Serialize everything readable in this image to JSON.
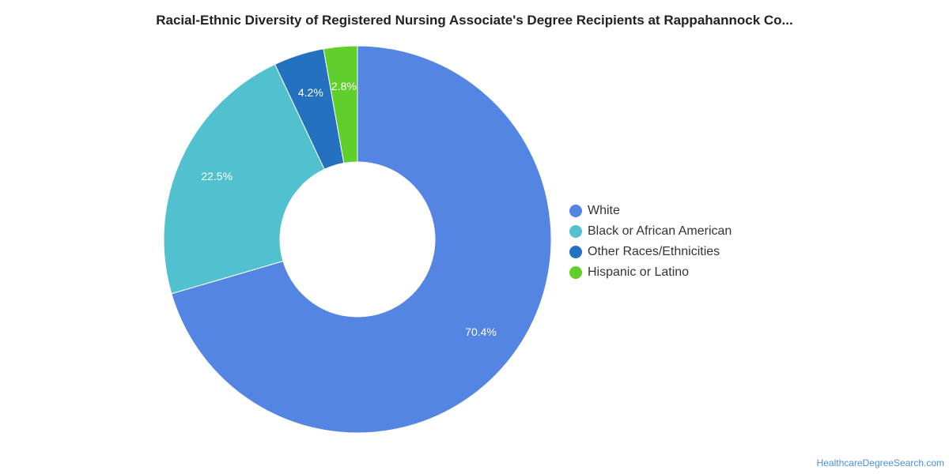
{
  "chart_data": {
    "type": "pie",
    "variant": "donut",
    "title": "Racial-Ethnic Diversity of Registered Nursing Associate's Degree Recipients at Rappahannock Co...",
    "slices": [
      {
        "label": "White",
        "value": 70.4,
        "display": "70.4%",
        "color": "#5585e3"
      },
      {
        "label": "Black or African American",
        "value": 22.5,
        "display": "22.5%",
        "color": "#51c1cf"
      },
      {
        "label": "Other Races/Ethnicities",
        "value": 4.2,
        "display": "4.2%",
        "color": "#2371bf"
      },
      {
        "label": "Hispanic or Latino",
        "value": 2.8,
        "display": "2.8%",
        "color": "#5ecf2b"
      }
    ],
    "legend_position": "right"
  },
  "credit": "HealthcareDegreeSearch.com"
}
